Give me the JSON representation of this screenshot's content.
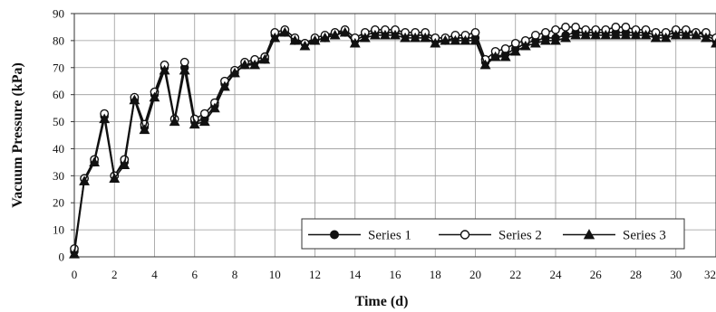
{
  "chart_data": {
    "type": "line",
    "title": "",
    "xlabel": "Time (d)",
    "ylabel": "Vacuum Pressure (kPa)",
    "xlim": [
      0,
      32
    ],
    "ylim": [
      0,
      90
    ],
    "x_ticks": [
      0,
      2,
      4,
      6,
      8,
      10,
      12,
      14,
      16,
      18,
      20,
      22,
      24,
      26,
      28,
      30,
      32
    ],
    "y_ticks": [
      0,
      10,
      20,
      30,
      40,
      50,
      60,
      70,
      80,
      90
    ],
    "grid": true,
    "legend_position": "bottom-right",
    "series": [
      {
        "name": "Series 1",
        "marker": "filled-circle",
        "x": [
          0,
          0.5,
          1,
          1.5,
          2,
          2.5,
          3,
          3.5,
          4,
          4.5,
          5,
          5.5,
          6,
          6.5,
          7,
          7.5,
          8,
          8.5,
          9,
          9.5,
          10,
          10.5,
          11,
          11.5,
          12,
          12.5,
          13,
          13.5,
          14,
          14.5,
          15,
          15.5,
          16,
          16.5,
          17,
          17.5,
          18,
          18.5,
          19,
          19.5,
          20,
          20.5,
          21,
          21.5,
          22,
          22.5,
          23,
          23.5,
          24,
          24.5,
          25,
          25.5,
          26,
          26.5,
          27,
          27.5,
          28,
          28.5,
          29,
          29.5,
          30,
          30.5,
          31,
          31.5,
          32
        ],
        "values": [
          2,
          29,
          35,
          52,
          30,
          35,
          58,
          48,
          60,
          70,
          51,
          70,
          50,
          51,
          56,
          64,
          68,
          71,
          72,
          73,
          82,
          83,
          80,
          79,
          80,
          81,
          83,
          83,
          80,
          82,
          83,
          83,
          83,
          82,
          82,
          82,
          80,
          80,
          81,
          81,
          81,
          72,
          74,
          75,
          77,
          79,
          80,
          81,
          81,
          82,
          83,
          83,
          83,
          83,
          83,
          83,
          83,
          83,
          82,
          82,
          83,
          83,
          83,
          82,
          80
        ]
      },
      {
        "name": "Series 2",
        "marker": "open-circle",
        "x": [
          0,
          0.5,
          1,
          1.5,
          2,
          2.5,
          3,
          3.5,
          4,
          4.5,
          5,
          5.5,
          6,
          6.5,
          7,
          7.5,
          8,
          8.5,
          9,
          9.5,
          10,
          10.5,
          11,
          11.5,
          12,
          12.5,
          13,
          13.5,
          14,
          14.5,
          15,
          15.5,
          16,
          16.5,
          17,
          17.5,
          18,
          18.5,
          19,
          19.5,
          20,
          20.5,
          21,
          21.5,
          22,
          22.5,
          23,
          23.5,
          24,
          24.5,
          25,
          25.5,
          26,
          26.5,
          27,
          27.5,
          28,
          28.5,
          29,
          29.5,
          30,
          30.5,
          31,
          31.5,
          32
        ],
        "values": [
          3,
          29,
          36,
          53,
          30,
          36,
          59,
          49,
          61,
          71,
          51,
          72,
          51,
          53,
          57,
          65,
          69,
          72,
          73,
          74,
          83,
          84,
          81,
          79,
          81,
          82,
          83,
          84,
          81,
          83,
          84,
          84,
          84,
          83,
          83,
          83,
          81,
          81,
          82,
          82,
          83,
          73,
          76,
          77,
          79,
          80,
          82,
          83,
          84,
          85,
          85,
          84,
          84,
          84,
          85,
          85,
          84,
          84,
          83,
          83,
          84,
          84,
          83,
          83,
          81
        ]
      },
      {
        "name": "Series 3",
        "marker": "filled-triangle",
        "x": [
          0,
          0.5,
          1,
          1.5,
          2,
          2.5,
          3,
          3.5,
          4,
          4.5,
          5,
          5.5,
          6,
          6.5,
          7,
          7.5,
          8,
          8.5,
          9,
          9.5,
          10,
          10.5,
          11,
          11.5,
          12,
          12.5,
          13,
          13.5,
          14,
          14.5,
          15,
          15.5,
          16,
          16.5,
          17,
          17.5,
          18,
          18.5,
          19,
          19.5,
          20,
          20.5,
          21,
          21.5,
          22,
          22.5,
          23,
          23.5,
          24,
          24.5,
          25,
          25.5,
          26,
          26.5,
          27,
          27.5,
          28,
          28.5,
          29,
          29.5,
          30,
          30.5,
          31,
          31.5,
          32
        ],
        "values": [
          1,
          28,
          35,
          51,
          29,
          34,
          58,
          47,
          59,
          69,
          50,
          69,
          49,
          50,
          55,
          63,
          68,
          71,
          71,
          73,
          81,
          83,
          80,
          78,
          80,
          81,
          82,
          83,
          79,
          81,
          82,
          82,
          82,
          81,
          81,
          81,
          79,
          80,
          80,
          80,
          80,
          71,
          74,
          74,
          76,
          78,
          79,
          80,
          80,
          81,
          82,
          82,
          82,
          82,
          82,
          82,
          82,
          82,
          81,
          81,
          82,
          82,
          82,
          81,
          79
        ]
      }
    ]
  }
}
